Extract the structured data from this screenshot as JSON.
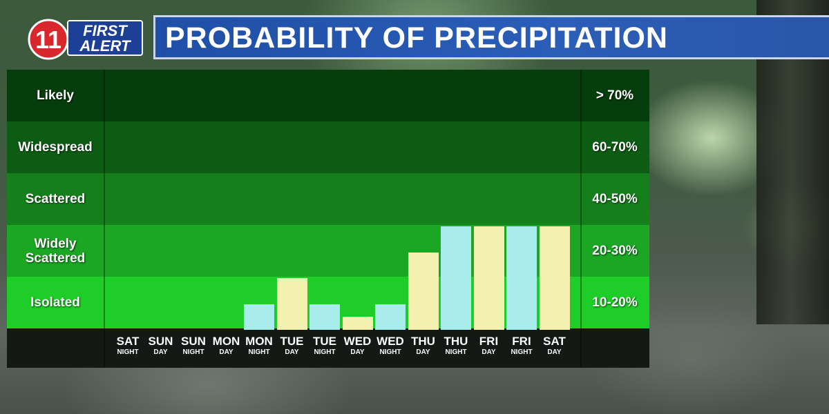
{
  "header": {
    "logo_number": "11",
    "logo_line1": "FIRST",
    "logo_line2": "ALERT",
    "title": "PROBABILITY OF PRECIPITATION"
  },
  "colors": {
    "night_bar": "#a9ecec",
    "day_bar": "#f4f0b0",
    "band_likely": "#063d0c",
    "band_widespread": "#0c5d13",
    "band_scattered": "#15801b",
    "band_widely_scattered": "#1ba624",
    "band_isolated": "#1fcd28"
  },
  "chart_data": {
    "type": "bar",
    "title": "PROBABILITY OF PRECIPITATION",
    "bands": [
      {
        "label": "Likely",
        "range": "> 70%"
      },
      {
        "label": "Widespread",
        "range": "60-70%"
      },
      {
        "label": "Scattered",
        "range": "40-50%"
      },
      {
        "label": "Widely Scattered",
        "range": "20-30%"
      },
      {
        "label": "Isolated",
        "range": "10-20%"
      }
    ],
    "categories": [
      {
        "day": "SAT",
        "period": "NIGHT"
      },
      {
        "day": "SUN",
        "period": "DAY"
      },
      {
        "day": "SUN",
        "period": "NIGHT"
      },
      {
        "day": "MON",
        "period": "DAY"
      },
      {
        "day": "MON",
        "period": "NIGHT"
      },
      {
        "day": "TUE",
        "period": "DAY"
      },
      {
        "day": "TUE",
        "period": "NIGHT"
      },
      {
        "day": "WED",
        "period": "DAY"
      },
      {
        "day": "WED",
        "period": "NIGHT"
      },
      {
        "day": "THU",
        "period": "DAY"
      },
      {
        "day": "THU",
        "period": "NIGHT"
      },
      {
        "day": "FRI",
        "period": "DAY"
      },
      {
        "day": "FRI",
        "period": "NIGHT"
      },
      {
        "day": "SAT",
        "period": "DAY"
      }
    ],
    "values": [
      0,
      0,
      0,
      0,
      10,
      20,
      10,
      5,
      10,
      30,
      40,
      40,
      40,
      40
    ],
    "ylim": [
      0,
      100
    ],
    "grid": false,
    "legend": "none"
  }
}
